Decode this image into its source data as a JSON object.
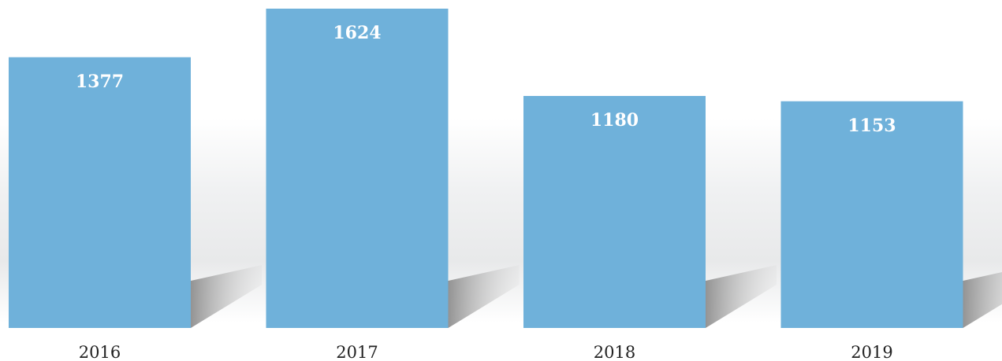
{
  "chart_data": {
    "type": "bar",
    "categories": [
      "2016",
      "2017",
      "2018",
      "2019"
    ],
    "values": [
      1377,
      1624,
      1180,
      1153
    ],
    "ylim": [
      0,
      1624
    ],
    "grid": false,
    "title": "",
    "xlabel": "",
    "ylabel": "",
    "colors": {
      "bar": "#6fb1da",
      "value_label": "#ffffff",
      "tick_label": "#222222",
      "shadow": "#9a9a9a"
    }
  }
}
